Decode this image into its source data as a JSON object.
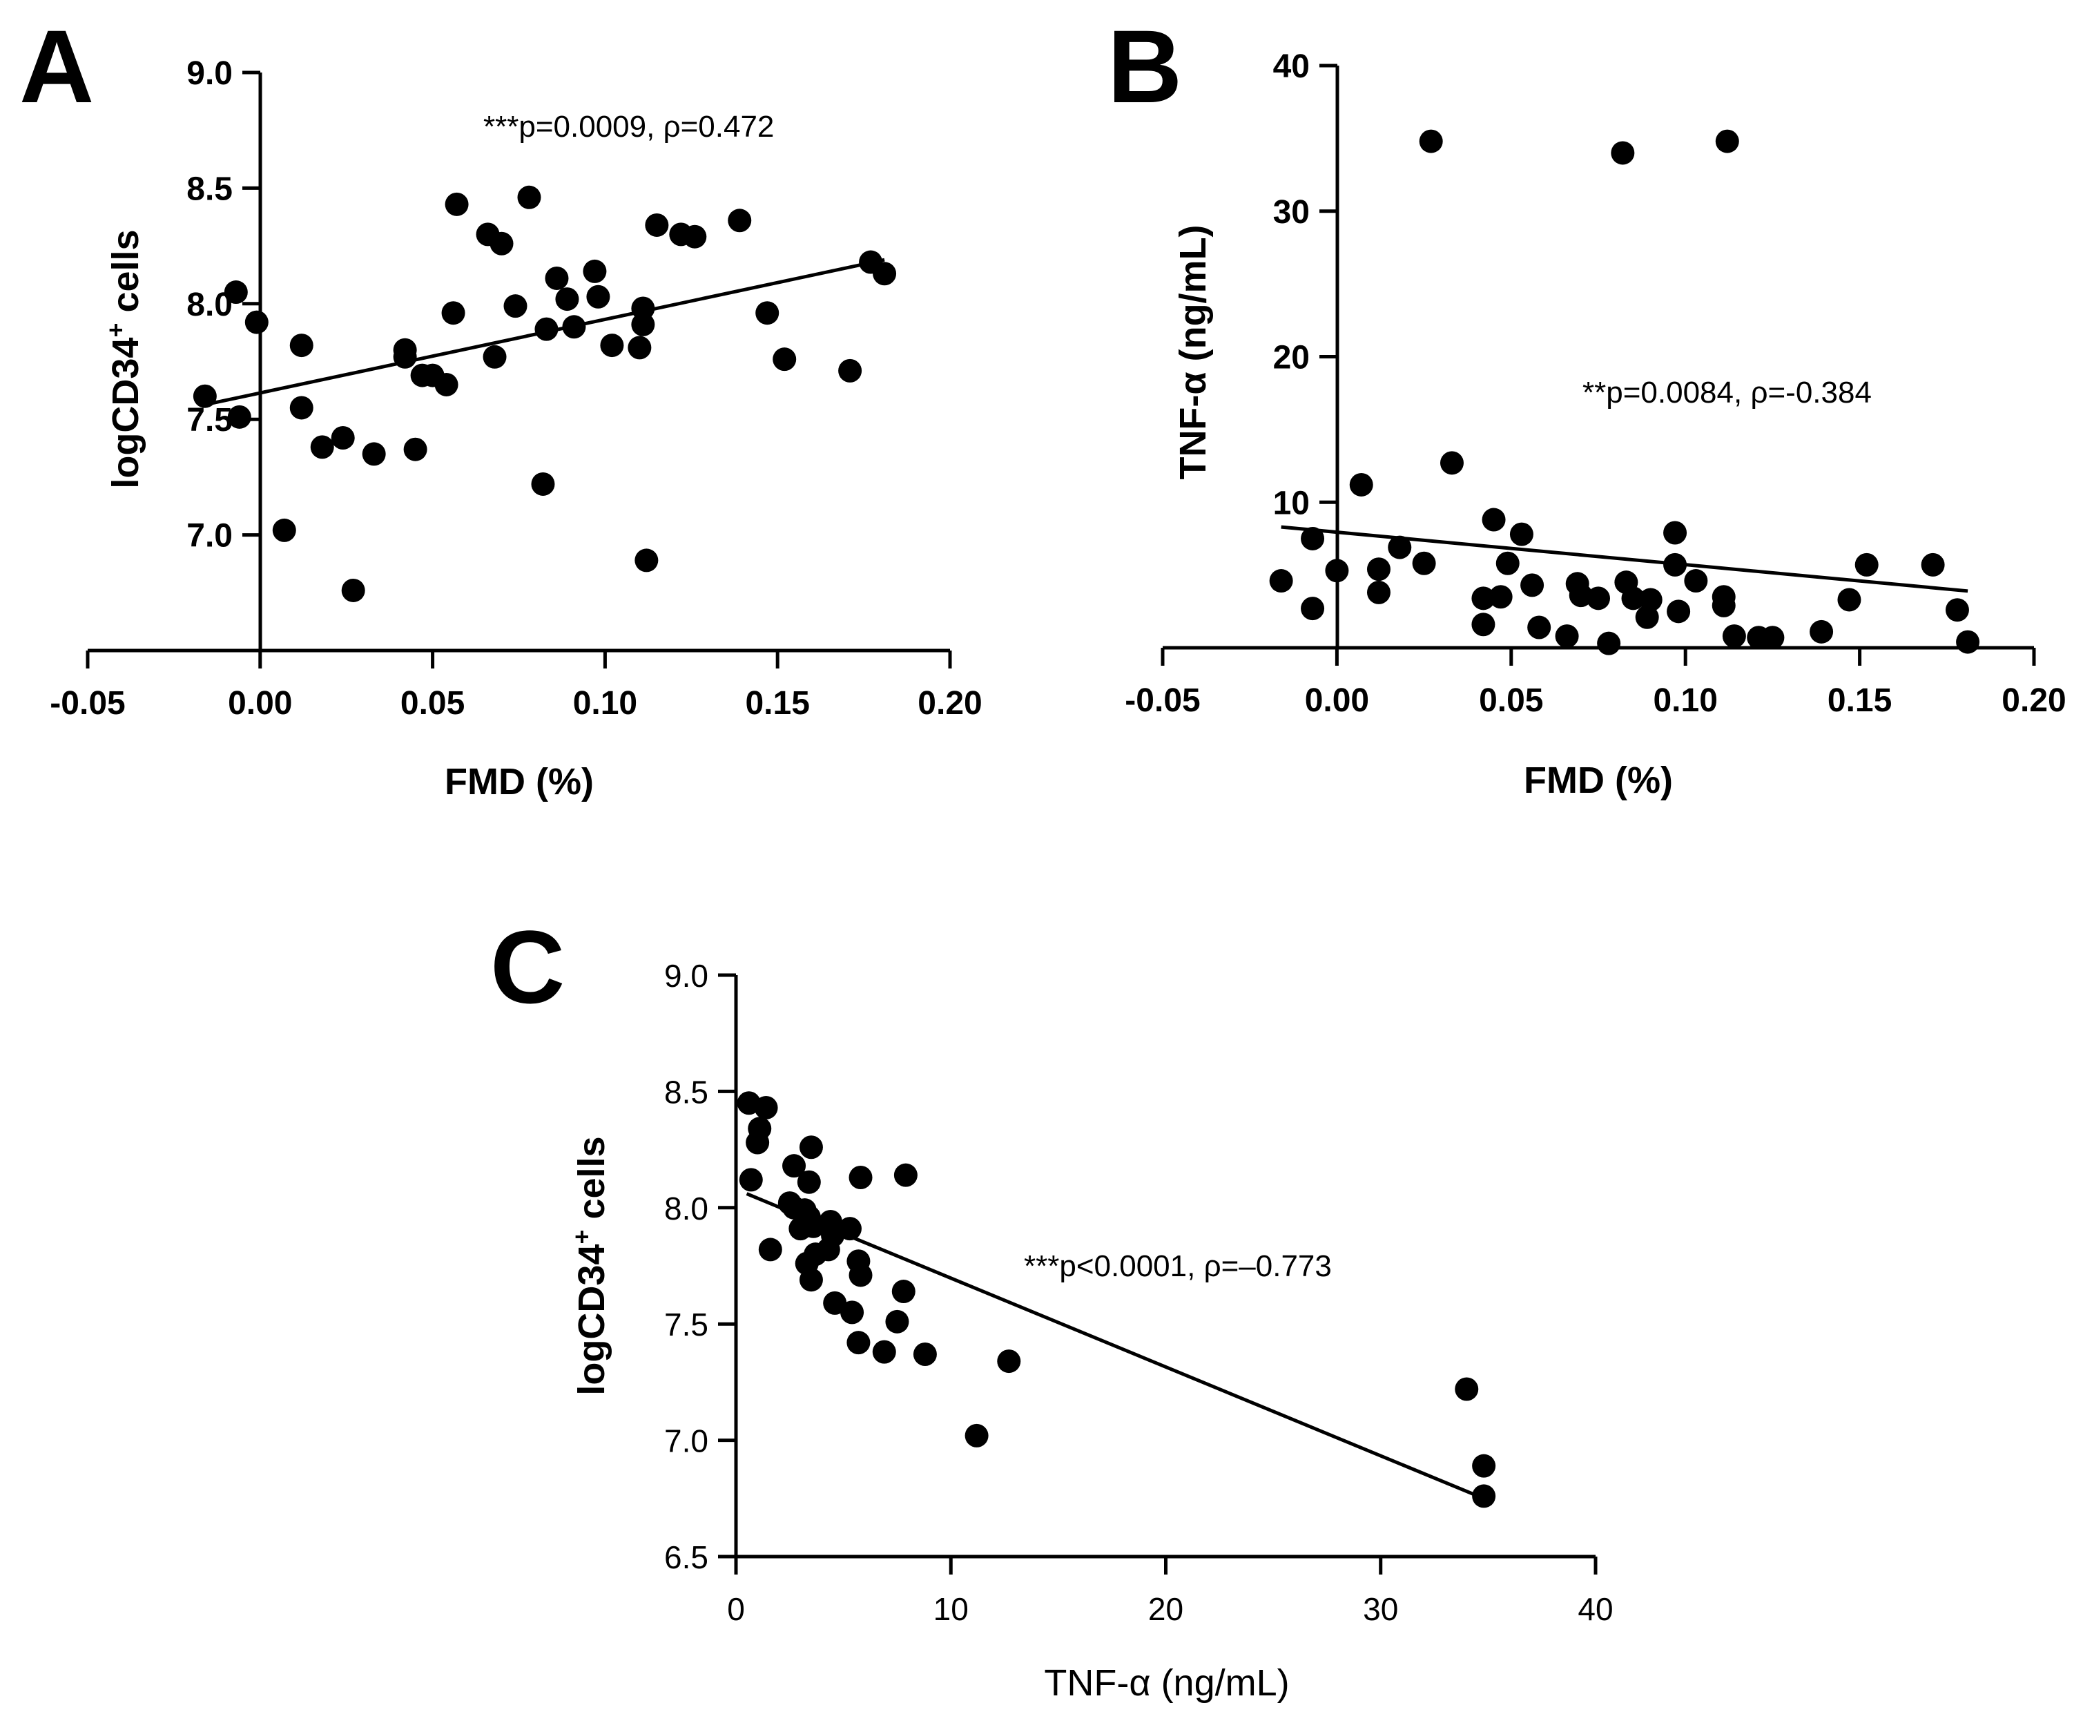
{
  "chart_data": [
    {
      "id": "A",
      "type": "scatter",
      "panel_label": "A",
      "xlabel": "FMD (%)",
      "ylabel": "logCD34",
      "ylabel_sup": "+",
      "ylabel_suffix": " cells",
      "annotation": "***p=0.0009, ρ=0.472",
      "xlim": [
        -0.05,
        0.2
      ],
      "ylim": [
        6.5,
        9.0
      ],
      "x_ticks": [
        -0.05,
        0.0,
        0.05,
        0.1,
        0.15,
        0.2
      ],
      "x_tick_labels": [
        "-0.05",
        "0.00",
        "0.05",
        "0.10",
        "0.15",
        "0.20"
      ],
      "y_ticks": [
        7.0,
        7.5,
        8.0,
        8.5,
        9.0
      ],
      "y_tick_labels": [
        "7.0",
        "7.5",
        "8.0",
        "8.5",
        "9.0"
      ],
      "fit_line": {
        "x": [
          -0.017,
          0.181
        ],
        "y": [
          7.56,
          8.19
        ]
      },
      "points": [
        [
          -0.016,
          7.6
        ],
        [
          -0.007,
          8.05
        ],
        [
          -0.006,
          7.51
        ],
        [
          -0.001,
          7.92
        ],
        [
          0.007,
          7.02
        ],
        [
          0.012,
          7.82
        ],
        [
          0.012,
          7.55
        ],
        [
          0.018,
          7.38
        ],
        [
          0.024,
          7.42
        ],
        [
          0.027,
          6.76
        ],
        [
          0.033,
          7.35
        ],
        [
          0.042,
          7.8
        ],
        [
          0.042,
          7.77
        ],
        [
          0.045,
          7.37
        ],
        [
          0.047,
          7.69
        ],
        [
          0.05,
          7.69
        ],
        [
          0.054,
          7.65
        ],
        [
          0.056,
          7.96
        ],
        [
          0.057,
          8.43
        ],
        [
          0.066,
          8.3
        ],
        [
          0.068,
          7.77
        ],
        [
          0.07,
          8.26
        ],
        [
          0.074,
          7.99
        ],
        [
          0.078,
          8.46
        ],
        [
          0.082,
          7.22
        ],
        [
          0.083,
          7.89
        ],
        [
          0.086,
          8.11
        ],
        [
          0.089,
          8.02
        ],
        [
          0.091,
          7.9
        ],
        [
          0.097,
          8.14
        ],
        [
          0.098,
          8.03
        ],
        [
          0.102,
          7.82
        ],
        [
          0.11,
          7.81
        ],
        [
          0.111,
          7.98
        ],
        [
          0.111,
          7.91
        ],
        [
          0.112,
          6.89
        ],
        [
          0.115,
          8.34
        ],
        [
          0.122,
          8.3
        ],
        [
          0.126,
          8.29
        ],
        [
          0.139,
          8.36
        ],
        [
          0.147,
          7.96
        ],
        [
          0.152,
          7.76
        ],
        [
          0.171,
          7.71
        ],
        [
          0.177,
          8.18
        ],
        [
          0.181,
          8.13
        ]
      ]
    },
    {
      "id": "B",
      "type": "scatter",
      "panel_label": "B",
      "xlabel": "FMD (%)",
      "ylabel": "TNF-α (ng/mL)",
      "annotation": "**p=0.0084, ρ=-0.384",
      "xlim": [
        -0.05,
        0.2
      ],
      "ylim": [
        0,
        40
      ],
      "x_ticks": [
        -0.05,
        0.0,
        0.05,
        0.1,
        0.15,
        0.2
      ],
      "x_tick_labels": [
        "-0.05",
        "0.00",
        "0.05",
        "0.10",
        "0.15",
        "0.20"
      ],
      "y_ticks": [
        10,
        20,
        30,
        40
      ],
      "y_tick_labels": [
        "10",
        "20",
        "30",
        "40"
      ],
      "fit_line": {
        "x": [
          -0.016,
          0.181
        ],
        "y": [
          8.3,
          3.9
        ]
      },
      "points": [
        [
          -0.016,
          4.6
        ],
        [
          -0.007,
          7.5
        ],
        [
          -0.007,
          2.7
        ],
        [
          0.0,
          5.3
        ],
        [
          0.007,
          11.2
        ],
        [
          0.012,
          5.4
        ],
        [
          0.012,
          3.8
        ],
        [
          0.018,
          6.9
        ],
        [
          0.025,
          5.8
        ],
        [
          0.027,
          34.8
        ],
        [
          0.033,
          12.7
        ],
        [
          0.042,
          3.4
        ],
        [
          0.042,
          1.6
        ],
        [
          0.045,
          8.8
        ],
        [
          0.047,
          3.5
        ],
        [
          0.049,
          5.8
        ],
        [
          0.053,
          7.8
        ],
        [
          0.056,
          4.3
        ],
        [
          0.058,
          1.4
        ],
        [
          0.066,
          0.8
        ],
        [
          0.069,
          4.4
        ],
        [
          0.07,
          3.6
        ],
        [
          0.075,
          3.4
        ],
        [
          0.078,
          0.3
        ],
        [
          0.082,
          34.0
        ],
        [
          0.083,
          4.5
        ],
        [
          0.085,
          3.4
        ],
        [
          0.089,
          2.1
        ],
        [
          0.09,
          3.3
        ],
        [
          0.097,
          7.9
        ],
        [
          0.097,
          5.7
        ],
        [
          0.098,
          2.5
        ],
        [
          0.103,
          4.6
        ],
        [
          0.111,
          3.5
        ],
        [
          0.111,
          2.9
        ],
        [
          0.112,
          34.8
        ],
        [
          0.114,
          0.8
        ],
        [
          0.121,
          0.7
        ],
        [
          0.125,
          0.7
        ],
        [
          0.139,
          1.1
        ],
        [
          0.147,
          3.3
        ],
        [
          0.152,
          5.7
        ],
        [
          0.171,
          5.7
        ],
        [
          0.178,
          2.6
        ],
        [
          0.181,
          0.4
        ]
      ]
    },
    {
      "id": "C",
      "type": "scatter",
      "panel_label": "C",
      "xlabel": "TNF-α (ng/mL)",
      "ylabel": "logCD34",
      "ylabel_sup": "+",
      "ylabel_suffix": " cells",
      "annotation": "***p<0.0001, ρ=–0.773",
      "xlim": [
        0,
        40
      ],
      "ylim": [
        6.5,
        9.0
      ],
      "x_ticks": [
        0,
        10,
        20,
        30,
        40
      ],
      "x_tick_labels": [
        "0",
        "10",
        "20",
        "30",
        "40"
      ],
      "y_ticks": [
        6.5,
        7.0,
        7.5,
        8.0,
        8.5,
        9.0
      ],
      "y_tick_labels": [
        "6.5",
        "7.0",
        "7.5",
        "8.0",
        "8.5",
        "9.0"
      ],
      "fit_line": {
        "x": [
          0.5,
          34.8
        ],
        "y": [
          8.06,
          6.75
        ]
      },
      "points": [
        [
          0.6,
          8.45
        ],
        [
          0.7,
          8.12
        ],
        [
          1.0,
          8.28
        ],
        [
          1.1,
          8.34
        ],
        [
          1.4,
          8.43
        ],
        [
          1.6,
          7.82
        ],
        [
          2.5,
          8.02
        ],
        [
          2.7,
          8.0
        ],
        [
          2.7,
          8.18
        ],
        [
          3.0,
          7.91
        ],
        [
          3.2,
          7.99
        ],
        [
          3.3,
          7.76
        ],
        [
          3.4,
          8.11
        ],
        [
          3.4,
          7.96
        ],
        [
          3.5,
          8.26
        ],
        [
          3.5,
          7.69
        ],
        [
          3.6,
          7.92
        ],
        [
          3.7,
          7.8
        ],
        [
          4.3,
          7.82
        ],
        [
          4.4,
          7.94
        ],
        [
          4.5,
          7.88
        ],
        [
          4.6,
          7.59
        ],
        [
          4.6,
          7.9
        ],
        [
          5.3,
          7.91
        ],
        [
          5.4,
          7.55
        ],
        [
          5.7,
          7.77
        ],
        [
          5.7,
          7.42
        ],
        [
          5.8,
          8.13
        ],
        [
          5.8,
          7.71
        ],
        [
          6.9,
          7.38
        ],
        [
          7.5,
          7.51
        ],
        [
          7.8,
          7.64
        ],
        [
          7.9,
          8.14
        ],
        [
          8.8,
          7.37
        ],
        [
          11.2,
          7.02
        ],
        [
          12.7,
          7.34
        ],
        [
          34.0,
          7.22
        ],
        [
          34.8,
          6.89
        ],
        [
          34.8,
          6.76
        ]
      ]
    }
  ]
}
